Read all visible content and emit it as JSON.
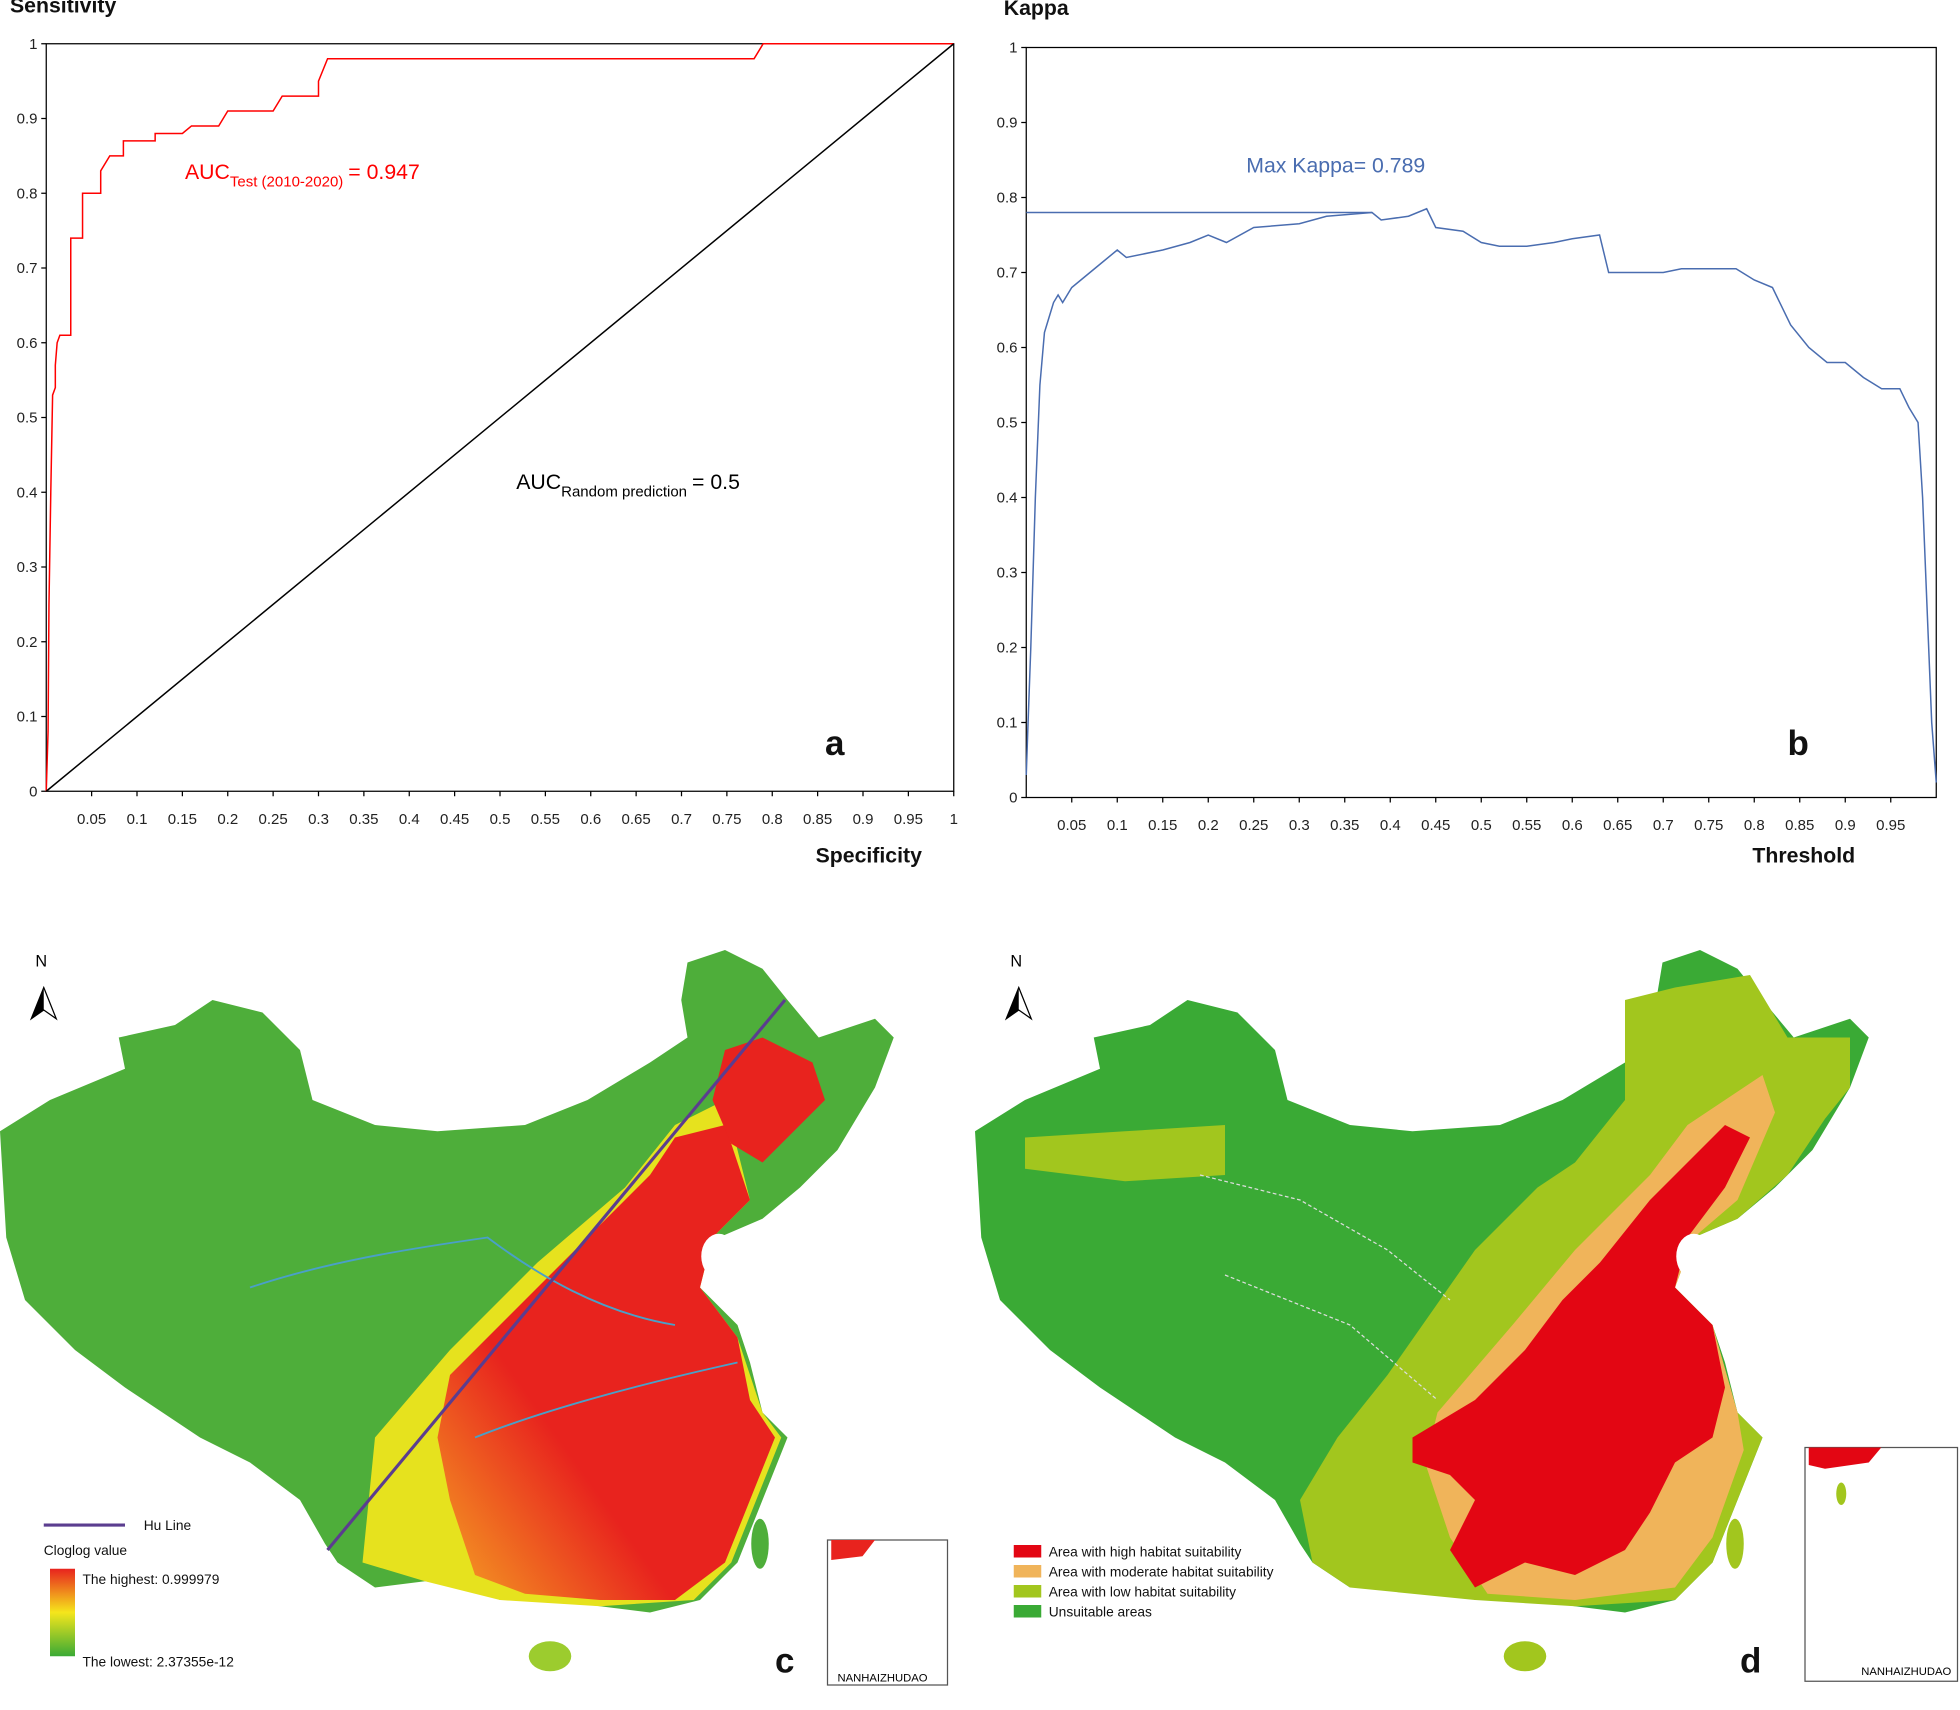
{
  "chart_data": [
    {
      "type": "line",
      "panel": "a",
      "ylabel": "Sensitivity",
      "xlabel": "Specificity",
      "xlim": [
        0,
        1
      ],
      "ylim": [
        0,
        1
      ],
      "xticks": [
        0.05,
        0.1,
        0.15,
        0.2,
        0.25,
        0.3,
        0.35,
        0.4,
        0.45,
        0.5,
        0.55,
        0.6,
        0.65,
        0.7,
        0.75,
        0.8,
        0.85,
        0.9,
        0.95,
        1
      ],
      "yticks": [
        0,
        0.1,
        0.2,
        0.3,
        0.4,
        0.5,
        0.6,
        0.7,
        0.8,
        0.9,
        1
      ],
      "series": [
        {
          "color": "#ff0000",
          "x": [
            0,
            0.002,
            0.003,
            0.005,
            0.007,
            0.01,
            0.01,
            0.012,
            0.015,
            0.027,
            0.027,
            0.04,
            0.04,
            0.06,
            0.06,
            0.07,
            0.085,
            0.085,
            0.12,
            0.12,
            0.15,
            0.16,
            0.19,
            0.2,
            0.25,
            0.26,
            0.3,
            0.3,
            0.31,
            0.78,
            0.79,
            1
          ],
          "values": [
            0,
            0.08,
            0.25,
            0.4,
            0.53,
            0.54,
            0.57,
            0.6,
            0.61,
            0.61,
            0.74,
            0.74,
            0.8,
            0.8,
            0.83,
            0.85,
            0.85,
            0.87,
            0.87,
            0.88,
            0.88,
            0.89,
            0.89,
            0.91,
            0.91,
            0.93,
            0.93,
            0.95,
            0.98,
            0.98,
            1,
            1
          ]
        },
        {
          "color": "#000000",
          "x": [
            0,
            1
          ],
          "values": [
            0,
            1
          ]
        }
      ],
      "annotations": [
        {
          "text": "AUC",
          "subscript": "Test (2010-2020)",
          "suffix": "= 0.947",
          "color": "#ff0000"
        },
        {
          "text": "AUC",
          "subscript": "Random prediction",
          "suffix": "= 0.5",
          "color": "#000000"
        }
      ]
    },
    {
      "type": "line",
      "panel": "b",
      "ylabel": "Kappa",
      "xlabel": "Threshold",
      "xlim": [
        0,
        1
      ],
      "ylim": [
        0,
        1
      ],
      "xticks": [
        0.05,
        0.1,
        0.15,
        0.2,
        0.25,
        0.3,
        0.35,
        0.4,
        0.45,
        0.5,
        0.55,
        0.6,
        0.65,
        0.7,
        0.75,
        0.8,
        0.85,
        0.9,
        0.95
      ],
      "yticks": [
        0,
        0.1,
        0.2,
        0.3,
        0.4,
        0.5,
        0.6,
        0.7,
        0.8,
        0.9,
        1
      ],
      "series": [
        {
          "color": "#4a6db0",
          "x": [
            0,
            0.002,
            0.005,
            0.01,
            0.015,
            0.02,
            0.025,
            0.03,
            0.035,
            0.04,
            0.05,
            0.06,
            0.07,
            0.08,
            0.1,
            0.11,
            0.15,
            0.18,
            0.2,
            0.22,
            0.25,
            0.3,
            0.33,
            0.38,
            0.39,
            0.42,
            0.44,
            0.45,
            0.48,
            0.5,
            0.52,
            0.55,
            0.58,
            0.6,
            0.63,
            0.64,
            0.7,
            0.72,
            0.78,
            0.8,
            0.82,
            0.84,
            0.86,
            0.88,
            0.9,
            0.92,
            0.94,
            0.96,
            0.97,
            0.98,
            0.985,
            0.99,
            0.995,
            1
          ],
          "values": [
            0.03,
            0.1,
            0.2,
            0.4,
            0.55,
            0.62,
            0.64,
            0.66,
            0.67,
            0.66,
            0.68,
            0.69,
            0.7,
            0.71,
            0.73,
            0.72,
            0.73,
            0.74,
            0.75,
            0.74,
            0.76,
            0.765,
            0.775,
            0.78,
            0.77,
            0.775,
            0.785,
            0.76,
            0.755,
            0.74,
            0.735,
            0.735,
            0.74,
            0.745,
            0.75,
            0.7,
            0.7,
            0.705,
            0.705,
            0.69,
            0.68,
            0.63,
            0.6,
            0.58,
            0.58,
            0.56,
            0.545,
            0.545,
            0.52,
            0.5,
            0.4,
            0.25,
            0.1,
            0.02
          ]
        },
        {
          "color": "#4a6db0",
          "x": [
            0,
            0.38
          ],
          "values": [
            0.78,
            0.78
          ]
        }
      ],
      "annotations": [
        {
          "text": "Max Kappa= 0.789",
          "color": "#4a6db0"
        }
      ]
    }
  ],
  "maps": [
    {
      "panel": "c",
      "north": "N",
      "inset_label": "NANHAIZHUDAO",
      "legend": {
        "line_label": "Hu Line",
        "line_color": "#5b3d8f",
        "title": "Cloglog value",
        "max_label": "The highest: 0.999979",
        "min_label": "The lowest: 2.37355e-12"
      }
    },
    {
      "panel": "d",
      "north": "N",
      "inset_label": "NANHAIZHUDAO",
      "legend": {
        "items": [
          {
            "label": "Area with high habitat suitability",
            "color": "#e30613"
          },
          {
            "label": "Area with moderate habitat suitability",
            "color": "#f0b45a"
          },
          {
            "label": "Area with low habitat suitability",
            "color": "#a2c61e"
          },
          {
            "label": "Unsuitable areas",
            "color": "#3aaa35"
          }
        ]
      }
    }
  ]
}
